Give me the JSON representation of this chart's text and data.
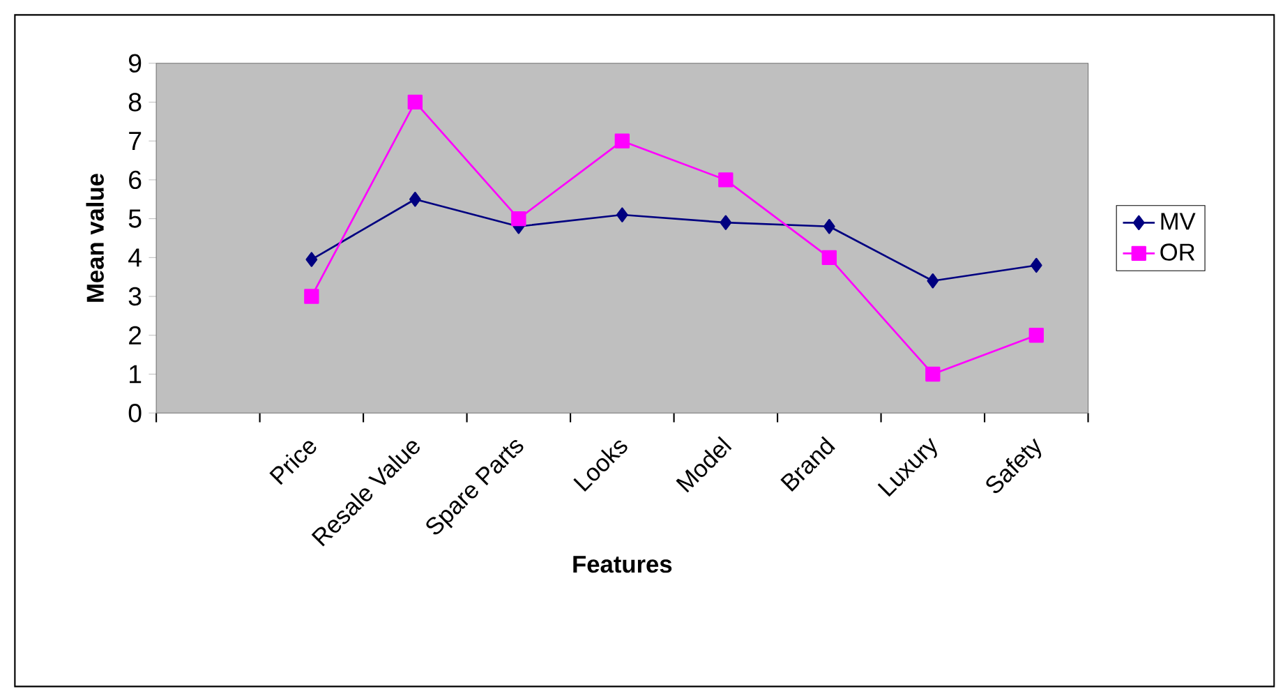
{
  "chart_data": {
    "type": "line",
    "xlabel": "Features",
    "ylabel": "Mean value",
    "categories": [
      "Price",
      "Resale Value",
      "Spare Parts",
      "Looks",
      "Model",
      "Brand",
      "Luxury",
      "Safety"
    ],
    "series": [
      {
        "name": "MV",
        "color": "#000080",
        "marker": "diamond",
        "values": [
          3.95,
          5.5,
          4.8,
          5.1,
          4.9,
          4.8,
          3.4,
          3.8
        ]
      },
      {
        "name": "OR",
        "color": "#ff00ff",
        "marker": "square",
        "values": [
          3,
          8,
          5,
          7,
          6,
          4,
          1,
          2
        ]
      }
    ],
    "ylim": [
      0,
      9
    ],
    "yticks": [
      0,
      1,
      2,
      3,
      4,
      5,
      6,
      7,
      8,
      9
    ],
    "grid": false,
    "legend": "right",
    "line_style": "solid"
  }
}
